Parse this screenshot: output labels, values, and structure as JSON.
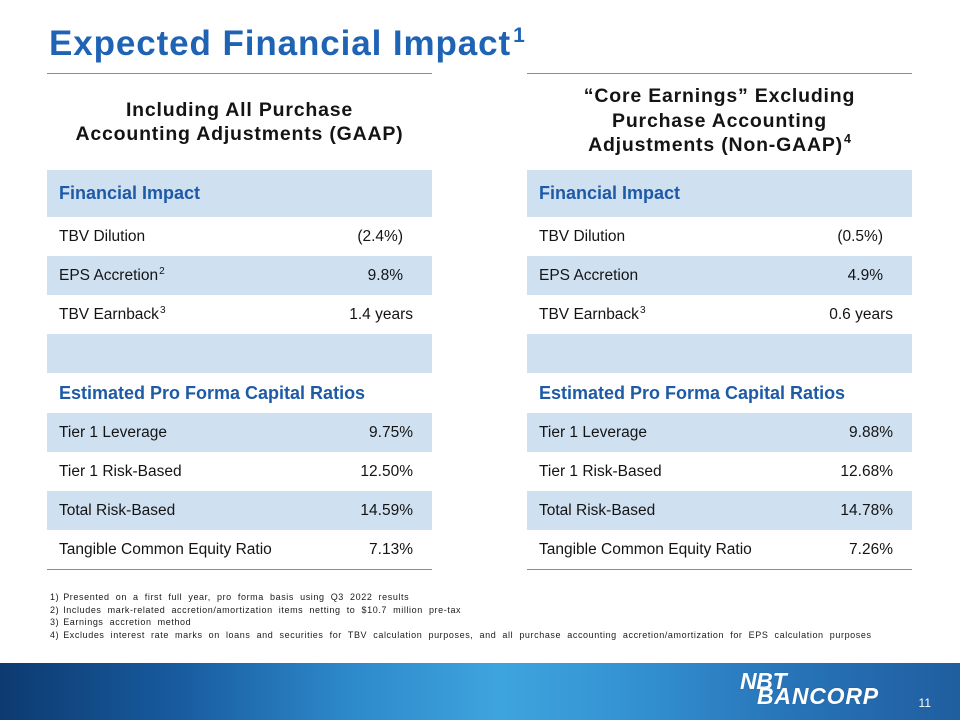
{
  "slide": {
    "title": "Expected Financial Impact",
    "title_sup": "1",
    "page_number": "11"
  },
  "colors": {
    "title": "#1f63b4",
    "section_header": "#1e5aa6",
    "row_shade": "#cfe0f1",
    "rule": "#6f93bf",
    "footer_text": "#ffffff"
  },
  "gaap": {
    "heading": [
      {
        "text": "Including All Purchase"
      },
      {
        "text": "Accounting Adjustments (GAAP)"
      }
    ],
    "impact": {
      "header": "Financial Impact",
      "rows": [
        {
          "label": "TBV Dilution",
          "value": "(2.4%)"
        },
        {
          "label": "EPS Accretion",
          "sup": "2",
          "value": "9.8%"
        },
        {
          "label": "TBV Earnback",
          "sup": "3",
          "value": "1.4 years"
        }
      ]
    },
    "ratios": {
      "header": "Estimated Pro Forma Capital Ratios",
      "rows": [
        {
          "label": "Tier 1 Leverage",
          "value": "9.75%"
        },
        {
          "label": "Tier 1 Risk-Based",
          "value": "12.50%"
        },
        {
          "label": "Total Risk-Based",
          "value": "14.59%"
        },
        {
          "label": "Tangible Common Equity Ratio",
          "value": "7.13%"
        }
      ]
    }
  },
  "non_gaap": {
    "heading": [
      {
        "text": "“Core Earnings” Excluding"
      },
      {
        "text": "Purchase Accounting"
      },
      {
        "text": "Adjustments (Non-GAAP)",
        "sup": "4"
      }
    ],
    "impact": {
      "header": "Financial Impact",
      "rows": [
        {
          "label": "TBV Dilution",
          "value": "(0.5%)"
        },
        {
          "label": "EPS Accretion",
          "value": "4.9%"
        },
        {
          "label": "TBV Earnback",
          "sup": "3",
          "value": "0.6 years"
        }
      ]
    },
    "ratios": {
      "header": "Estimated Pro Forma Capital Ratios",
      "rows": [
        {
          "label": "Tier 1 Leverage",
          "value": "9.88%"
        },
        {
          "label": "Tier 1 Risk-Based",
          "value": "12.68%"
        },
        {
          "label": "Total Risk-Based",
          "value": "14.78%"
        },
        {
          "label": "Tangible Common Equity Ratio",
          "value": "7.26%"
        }
      ]
    }
  },
  "footnotes": [
    {
      "num": "1)",
      "text": "Presented on a first full year, pro forma basis using Q3 2022 results"
    },
    {
      "num": "2)",
      "text": "Includes mark-related accretion/amortization items netting to $10.7 million pre-tax"
    },
    {
      "num": "3)",
      "text": "Earnings accretion method"
    },
    {
      "num": "4)",
      "text": "Excludes interest rate marks on loans and securities for TBV calculation purposes, and all purchase accounting accretion/amortization for EPS calculation purposes"
    }
  ],
  "logo": {
    "line1": "NBT",
    "line2": "BANCORP"
  }
}
